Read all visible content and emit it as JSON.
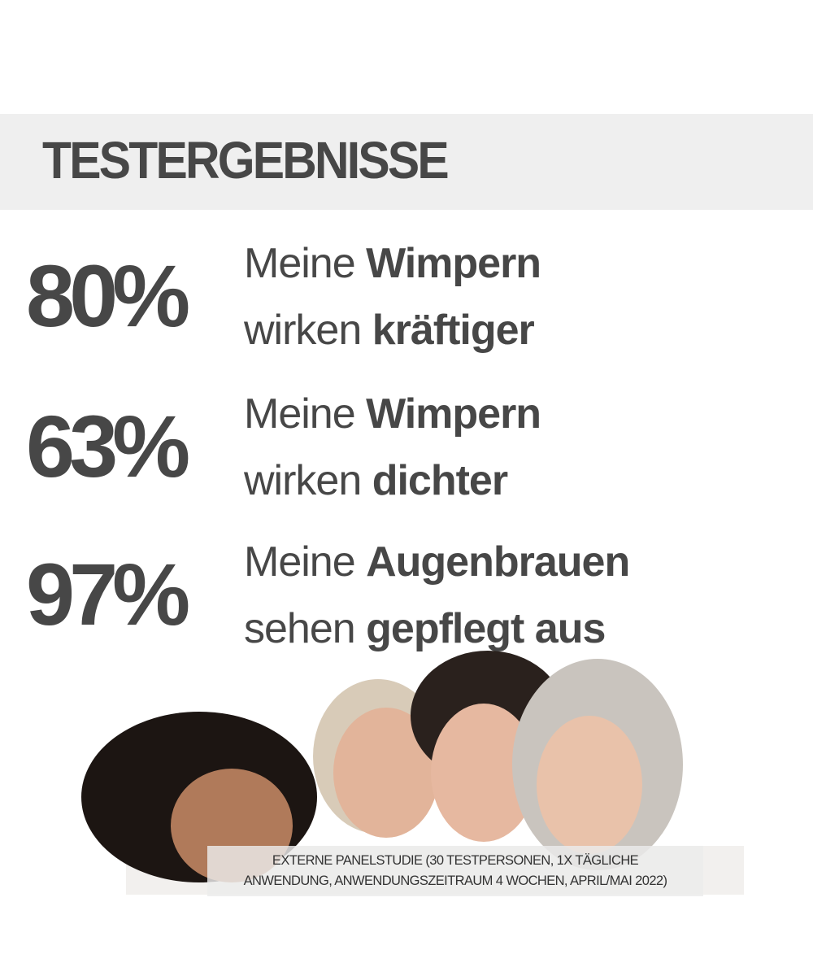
{
  "header": {
    "title": "TESTERGEBNISSE"
  },
  "results": [
    {
      "percent": "80%",
      "line1_normal": "Meine ",
      "line1_bold": "Wimpern",
      "line2_normal": "wirken ",
      "line2_bold": "kräftiger"
    },
    {
      "percent": "63%",
      "line1_normal": "Meine ",
      "line1_bold": "Wimpern",
      "line2_normal": "wirken ",
      "line2_bold": "dichter"
    },
    {
      "percent": "97%",
      "line1_normal": "Meine ",
      "line1_bold": "Augenbrauen",
      "line2_normal": "sehen ",
      "line2_bold": "gepflegt aus"
    }
  ],
  "footnote": {
    "line1": "EXTERNE PANELSTUDIE (30 TESTPERSONEN, 1X TÄGLICHE",
    "line2": "ANWENDUNG, ANWENDUNGSZEITRAUM 4 WOCHEN, APRIL/MAI 2022)"
  },
  "colors": {
    "text": "#474747",
    "band": "#efefef"
  }
}
